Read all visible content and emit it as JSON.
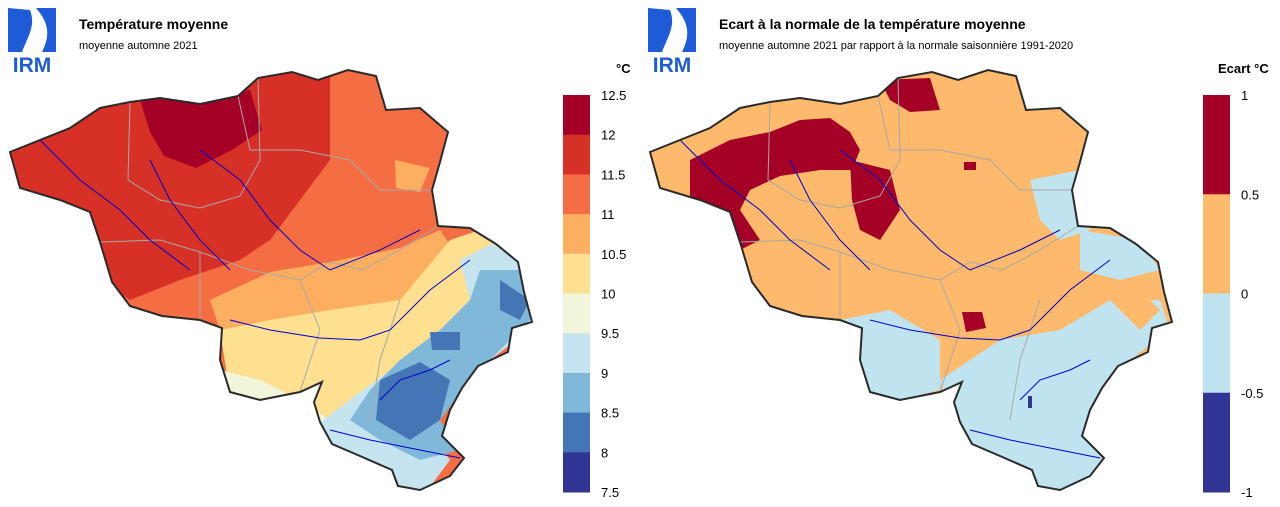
{
  "left": {
    "logo_text": "IRM",
    "title": "Température moyenne",
    "subtitle": "moyenne automne 2021",
    "unit": "°C",
    "legend": {
      "ticks": [
        "12.5",
        "12",
        "11.5",
        "11",
        "10.5",
        "10",
        "9.5",
        "9",
        "8.5",
        "8",
        "7.5"
      ],
      "colors": [
        "#a50026",
        "#d73027",
        "#f46d43",
        "#fdae61",
        "#fee090",
        "#f1f5da",
        "#c6e4f0",
        "#80b8d9",
        "#4475b4",
        "#313695"
      ]
    }
  },
  "right": {
    "logo_text": "IRM",
    "title": "Ecart à la normale de la température moyenne",
    "subtitle": "moyenne automne 2021 par rapport à la normale saisonnière 1991-2020",
    "unit": "Ecart °C",
    "legend": {
      "ticks": [
        "1",
        "0.5",
        "0",
        "-0.5",
        "-1"
      ],
      "colors": [
        "#a50026",
        "#fdb96c",
        "#bfe3ef",
        "#313695"
      ]
    }
  },
  "colors": {
    "logo_blue": "#1e5bd6",
    "border": "#2a2a2a",
    "province": "#a8a8a8",
    "river": "#0000cc"
  }
}
